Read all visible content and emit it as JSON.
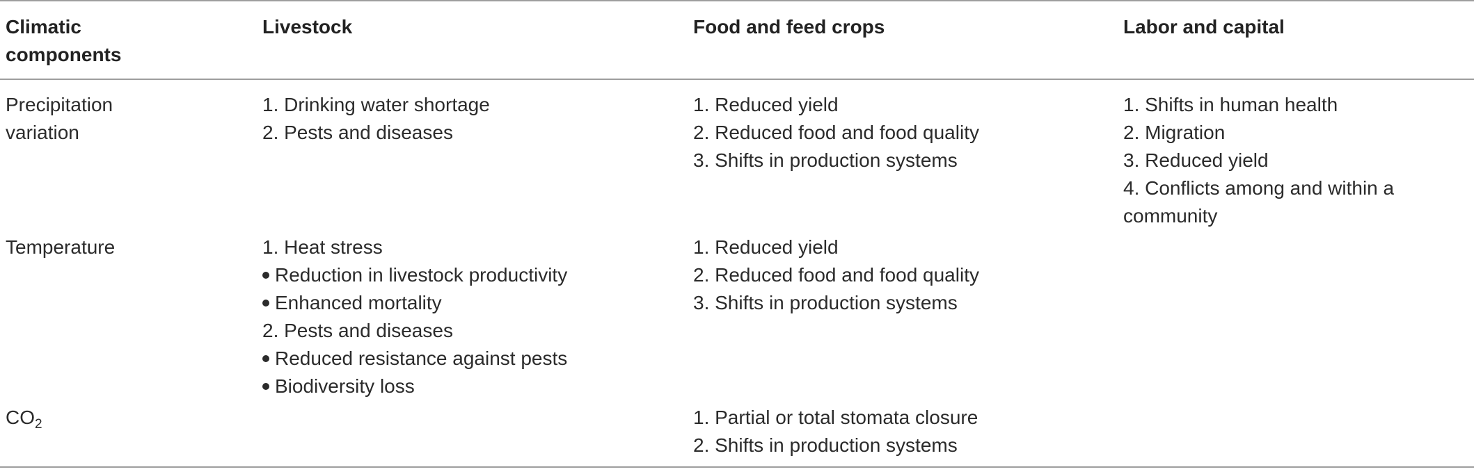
{
  "headers": {
    "climatic": "Climatic components",
    "livestock": "Livestock",
    "crops": "Food and feed crops",
    "labor": "Labor and capital"
  },
  "rows": [
    {
      "component": "Precipitation variation",
      "livestock": [
        "1. Drinking water shortage",
        "2. Pests and diseases"
      ],
      "crops": [
        "1. Reduced yield",
        "2. Reduced food and food quality",
        "3. Shifts in production systems"
      ],
      "labor": [
        "1. Shifts in human health",
        "2. Migration",
        "3. Reduced yield",
        "4. Conflicts among and within a community"
      ]
    },
    {
      "component": "Temperature",
      "livestock": [
        {
          "text": "1. Heat stress",
          "bullet": false
        },
        {
          "text": "Reduction in livestock productivity",
          "bullet": true
        },
        {
          "text": "Enhanced mortality",
          "bullet": true
        },
        {
          "text": "2. Pests and diseases",
          "bullet": false
        },
        {
          "text": "Reduced resistance against pests",
          "bullet": true
        },
        {
          "text": "Biodiversity loss",
          "bullet": true
        }
      ],
      "crops": [
        "1. Reduced yield",
        "2. Reduced food and food quality",
        "3. Shifts in production systems"
      ],
      "labor": []
    },
    {
      "component_base": "CO",
      "component_sub": "2",
      "livestock": [],
      "crops": [
        "1. Partial or total stomata closure",
        "2. Shifts in production systems"
      ],
      "labor": []
    }
  ]
}
